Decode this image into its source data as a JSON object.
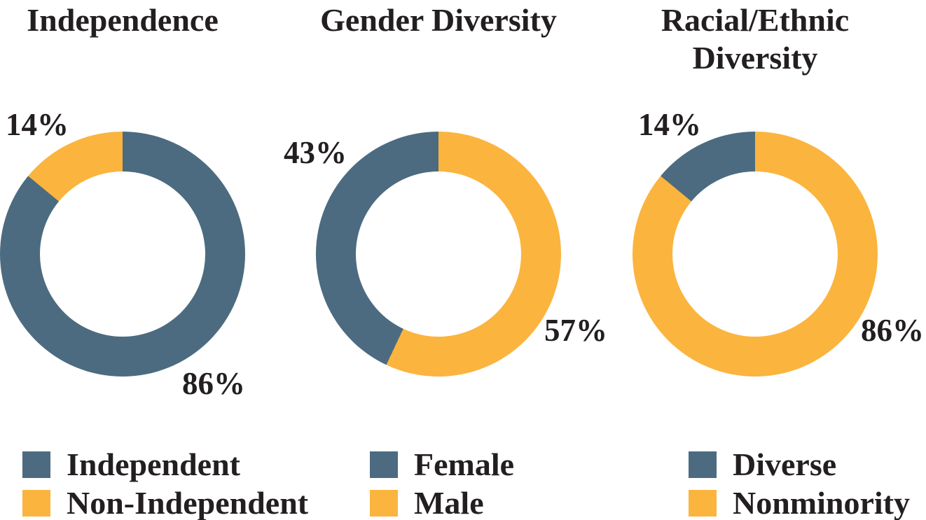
{
  "colors": {
    "slate": "#4C6B80",
    "amber": "#FBB43E",
    "text": "#231F20",
    "background": "#FFFFFF"
  },
  "chart_data": [
    {
      "type": "pie",
      "variant": "donut",
      "title": "Independence",
      "slices_clockwise_from_top": [
        {
          "name": "Independent",
          "value_pct": 86,
          "label": "86%",
          "color": "#4C6B80",
          "label_position": "bottom-right"
        },
        {
          "name": "Non-Independent",
          "value_pct": 14,
          "label": "14%",
          "color": "#FBB43E",
          "label_position": "top-left"
        }
      ],
      "legend": [
        {
          "label": "Independent",
          "color": "#4C6B80"
        },
        {
          "label": "Non-Independent",
          "color": "#FBB43E"
        }
      ],
      "legend_position": "bottom-left"
    },
    {
      "type": "pie",
      "variant": "donut",
      "title": "Gender Diversity",
      "slices_clockwise_from_top": [
        {
          "name": "Male",
          "value_pct": 57,
          "label": "57%",
          "color": "#FBB43E",
          "label_position": "right"
        },
        {
          "name": "Female",
          "value_pct": 43,
          "label": "43%",
          "color": "#4C6B80",
          "label_position": "upper-left"
        }
      ],
      "legend": [
        {
          "label": "Female",
          "color": "#4C6B80"
        },
        {
          "label": "Male",
          "color": "#FBB43E"
        }
      ],
      "legend_position": "bottom-left"
    },
    {
      "type": "pie",
      "variant": "donut",
      "title": "Racial/Ethnic Diversity",
      "slices_clockwise_from_top": [
        {
          "name": "Nonminority",
          "value_pct": 86,
          "label": "86%",
          "color": "#FBB43E",
          "label_position": "right"
        },
        {
          "name": "Diverse",
          "value_pct": 14,
          "label": "14%",
          "color": "#4C6B80",
          "label_position": "top-left"
        }
      ],
      "legend": [
        {
          "label": "Diverse",
          "color": "#4C6B80"
        },
        {
          "label": "Nonminority",
          "color": "#FBB43E"
        }
      ],
      "legend_position": "bottom-left"
    }
  ]
}
